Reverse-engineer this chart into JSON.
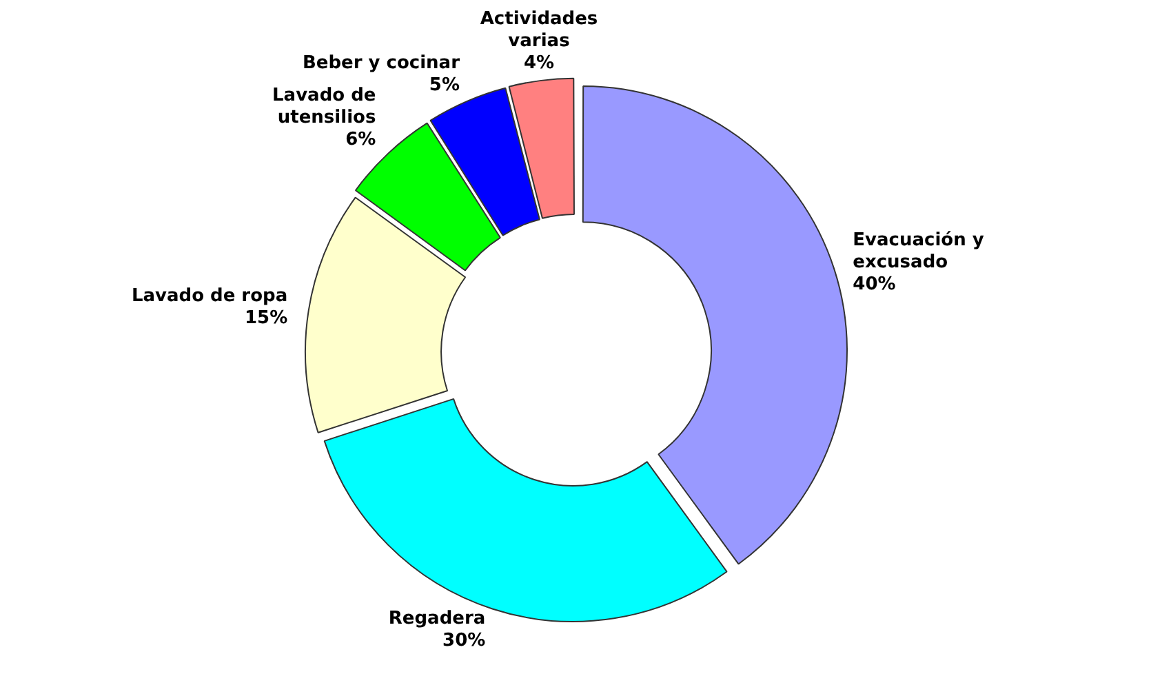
{
  "chart_data": {
    "type": "donut",
    "categories": [
      "Evacuación y excusado",
      "Regadera",
      "Lavado de ropa",
      "Lavado de utensilios",
      "Beber y cocinar",
      "Actividades varias"
    ],
    "values": [
      40,
      30,
      15,
      6,
      5,
      4
    ],
    "value_labels": [
      "40%",
      "30%",
      "15%",
      "6%",
      "5%",
      "4%"
    ],
    "colors": [
      "#9999ff",
      "#00ffff",
      "#ffffcc",
      "#00ff00",
      "#0000ff",
      "#ff8080"
    ],
    "legend": false
  }
}
